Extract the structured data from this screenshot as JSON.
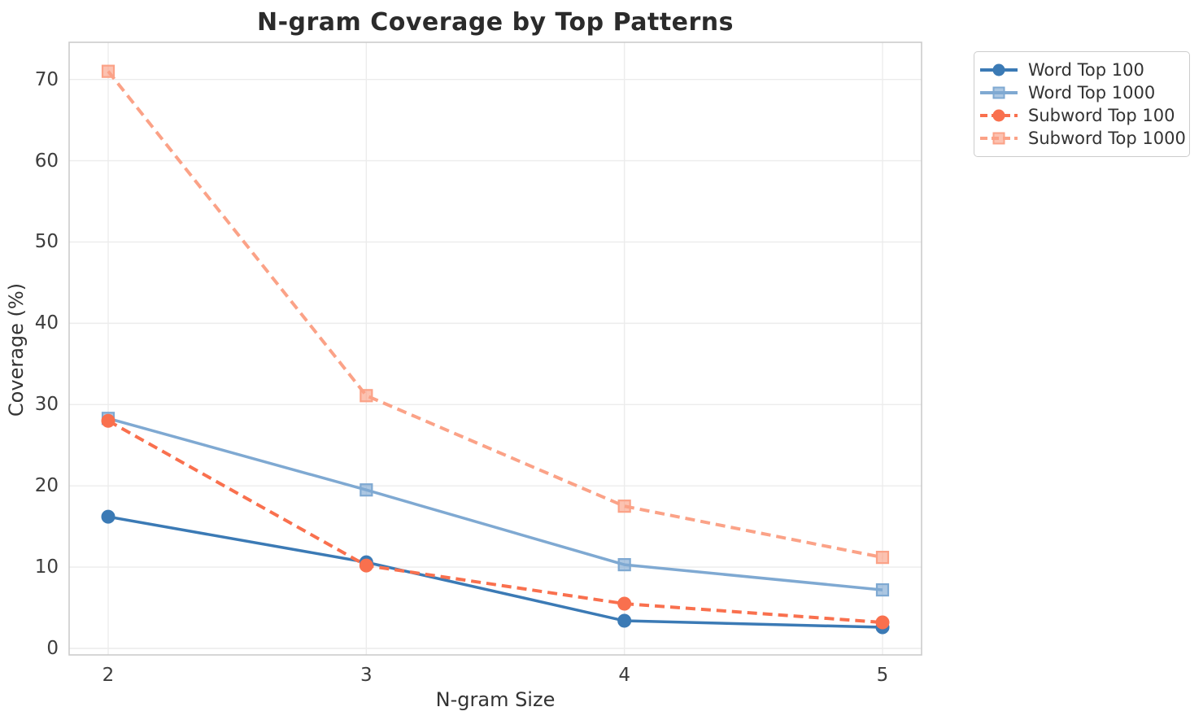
{
  "chart_data": {
    "type": "line",
    "title": "N-gram Coverage by Top Patterns",
    "xlabel": "N-gram Size",
    "ylabel": "Coverage (%)",
    "x": [
      2,
      3,
      4,
      5
    ],
    "series": [
      {
        "name": "Word Top 100",
        "values": [
          16.2,
          10.6,
          3.4,
          2.6
        ],
        "color": "#3b7ab5",
        "line_style": "solid",
        "marker": "circle"
      },
      {
        "name": "Word Top 1000",
        "values": [
          28.3,
          19.5,
          10.3,
          7.2
        ],
        "color": "#7fa9d2",
        "line_style": "solid",
        "marker": "square"
      },
      {
        "name": "Subword Top 100",
        "values": [
          28.0,
          10.2,
          5.5,
          3.2
        ],
        "color": "#f9704e",
        "line_style": "dashed",
        "marker": "circle"
      },
      {
        "name": "Subword Top 1000",
        "values": [
          71.0,
          31.1,
          17.5,
          11.2
        ],
        "color": "#fba287",
        "line_style": "dashed",
        "marker": "square"
      }
    ],
    "xticks": [
      2,
      3,
      4,
      5
    ],
    "yticks": [
      0,
      10,
      20,
      30,
      40,
      50,
      60,
      70
    ],
    "xlim": [
      1.8487,
      5.1513
    ],
    "ylim": [
      -0.8,
      74.57
    ],
    "grid": true,
    "grid_color": "#ececec",
    "spine_color": "#cccccc",
    "legend_position": "outside-top-right"
  }
}
